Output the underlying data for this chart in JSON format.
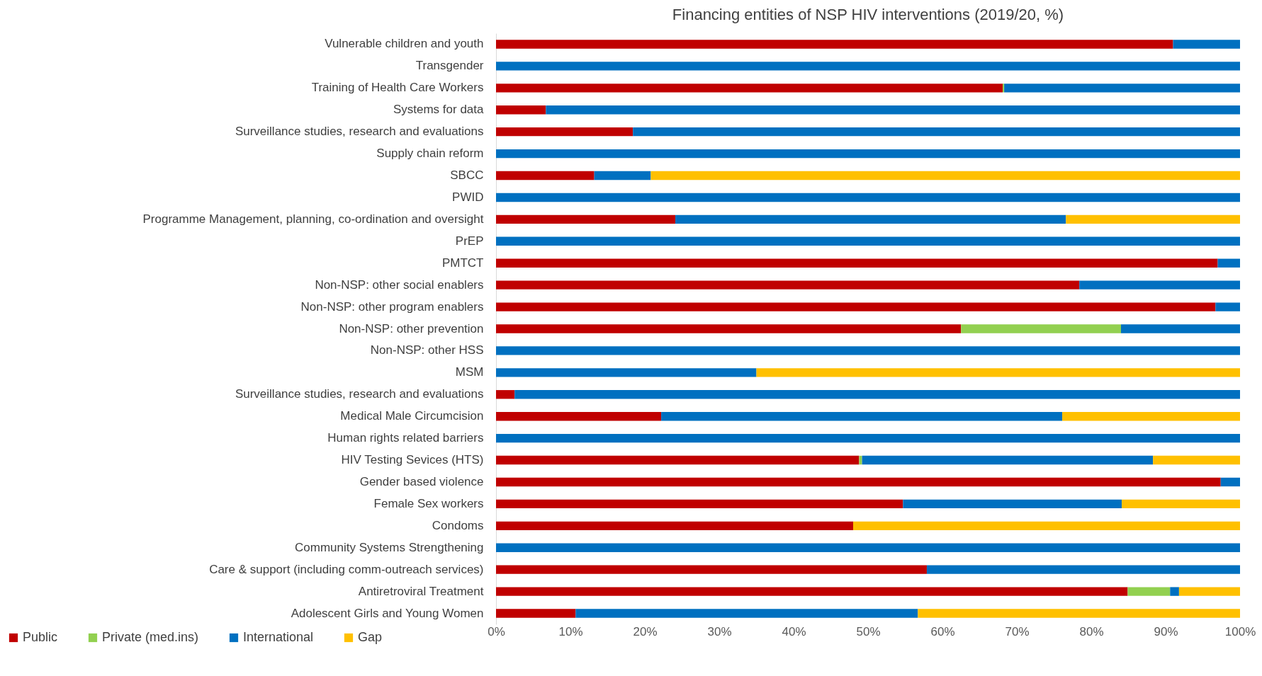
{
  "chart_data": {
    "type": "bar",
    "orientation": "horizontal",
    "stacked": true,
    "title": "Financing entities of NSP HIV interventions (2019/20, %)",
    "categories": [
      "Vulnerable children and youth",
      "Transgender",
      "Training of Health Care Workers",
      "Systems for data",
      "Surveillance studies, research and evaluations",
      "Supply chain reform",
      "SBCC",
      "PWID",
      "Programme Management, planning, co-ordination and oversight",
      "PrEP",
      "PMTCT",
      "Non-NSP: other social enablers",
      "Non-NSP: other program enablers",
      "Non-NSP: other prevention",
      "Non-NSP: other HSS",
      "MSM",
      "Surveillance studies, research and evaluations",
      "Medical Male Circumcision",
      "Human rights related barriers",
      "HIV Testing Sevices (HTS)",
      "Gender based violence",
      "Female Sex workers",
      "Condoms",
      "Community Systems Strengthening",
      "Care & support (including comm-outreach services)",
      "Antiretroviral Treatment",
      "Adolescent Girls and Young Women"
    ],
    "series": [
      {
        "name": "Public",
        "color": "#c00000",
        "values": [
          91.0,
          null,
          68.1,
          6.7,
          18.4,
          null,
          13.2,
          null,
          24.1,
          null,
          97.0,
          78.4,
          96.7,
          62.5,
          null,
          null,
          2.5,
          22.2,
          null,
          48.8,
          97.4,
          54.7,
          48.0,
          null,
          57.9,
          84.9,
          10.7
        ]
      },
      {
        "name": "Private (med.ins)",
        "color": "#92d050",
        "values": [
          null,
          null,
          0.2,
          null,
          null,
          null,
          null,
          null,
          null,
          null,
          null,
          null,
          null,
          21.5,
          null,
          null,
          null,
          null,
          null,
          0.4,
          null,
          null,
          null,
          null,
          null,
          5.7,
          null
        ]
      },
      {
        "name": "International",
        "color": "#0070c0",
        "values": [
          9.0,
          100,
          31.7,
          93.3,
          81.6,
          100,
          7.6,
          100,
          52.5,
          100,
          3.0,
          21.6,
          3.3,
          16.0,
          100,
          35.0,
          97.5,
          53.9,
          100,
          39.1,
          2.6,
          29.4,
          null,
          100,
          42.1,
          1.2,
          46.0
        ]
      },
      {
        "name": "Gap",
        "color": "#ffc000",
        "values": [
          null,
          null,
          null,
          null,
          null,
          null,
          79.2,
          null,
          23.4,
          null,
          null,
          null,
          null,
          null,
          null,
          65.0,
          null,
          23.9,
          null,
          11.7,
          null,
          15.9,
          52.0,
          null,
          null,
          8.2,
          43.3
        ]
      }
    ],
    "xlim": [
      0,
      100
    ],
    "xticks": [
      {
        "value": 0,
        "label": "0%"
      },
      {
        "value": 10,
        "label": "10%"
      },
      {
        "value": 20,
        "label": "20%"
      },
      {
        "value": 30,
        "label": "30%"
      },
      {
        "value": 40,
        "label": "40%"
      },
      {
        "value": 50,
        "label": "50%"
      },
      {
        "value": 60,
        "label": "60%"
      },
      {
        "value": 70,
        "label": "70%"
      },
      {
        "value": 80,
        "label": "80%"
      },
      {
        "value": 90,
        "label": "90%"
      },
      {
        "value": 100,
        "label": "100%"
      }
    ],
    "legend": "bottom left"
  }
}
